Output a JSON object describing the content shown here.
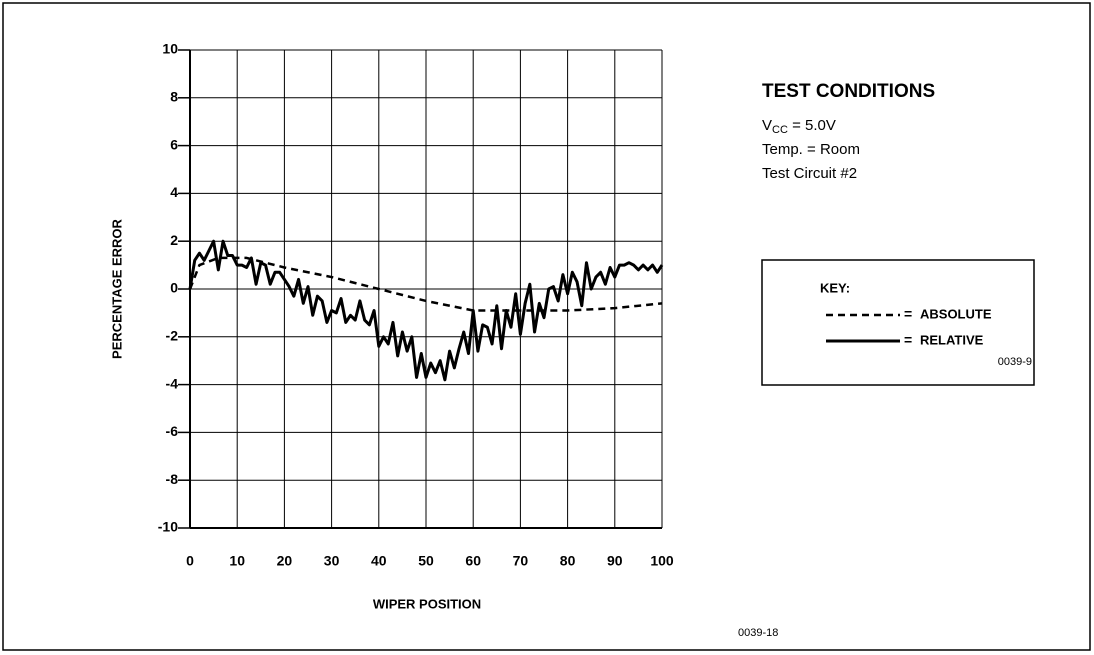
{
  "chart_data": {
    "type": "line",
    "xlabel": "WIPER POSITION",
    "ylabel": "PERCENTAGE ERROR",
    "xlim": [
      0,
      100
    ],
    "ylim": [
      -10,
      10
    ],
    "xticks": [
      0,
      10,
      20,
      30,
      40,
      50,
      60,
      70,
      80,
      90,
      100
    ],
    "yticks": [
      -10,
      -8,
      -6,
      -4,
      -2,
      0,
      2,
      4,
      6,
      8,
      10
    ],
    "grid": true,
    "legend_title": "KEY:",
    "legend_separator": "=",
    "legend_code": "0039-9",
    "figure_code": "0039-18",
    "conditions_title": "TEST CONDITIONS",
    "conditions": [
      {
        "main": "V",
        "sub": "CC",
        "rest": " = 5.0V"
      },
      {
        "main": "Temp. = Room"
      },
      {
        "main": "Test Circuit #2"
      }
    ],
    "series": [
      {
        "name": "ABSOLUTE",
        "color": "#000000",
        "style": "dashed",
        "x": [
          0,
          2,
          6,
          12,
          20,
          30,
          40,
          50,
          60,
          70,
          80,
          90,
          100
        ],
        "values": [
          0,
          1.0,
          1.3,
          1.3,
          0.9,
          0.5,
          0.0,
          -0.5,
          -0.9,
          -0.9,
          -0.9,
          -0.8,
          -0.6
        ]
      },
      {
        "name": "RELATIVE",
        "color": "#000000",
        "style": "solid",
        "x": [
          0,
          1,
          2,
          3,
          4,
          5,
          6,
          7,
          8,
          9,
          10,
          11,
          12,
          13,
          14,
          15,
          16,
          17,
          18,
          19,
          20,
          21,
          22,
          23,
          24,
          25,
          26,
          27,
          28,
          29,
          30,
          31,
          32,
          33,
          34,
          35,
          36,
          37,
          38,
          39,
          40,
          41,
          42,
          43,
          44,
          45,
          46,
          47,
          48,
          49,
          50,
          51,
          52,
          53,
          54,
          55,
          56,
          57,
          58,
          59,
          60,
          61,
          62,
          63,
          64,
          65,
          66,
          67,
          68,
          69,
          70,
          71,
          72,
          73,
          74,
          75,
          76,
          77,
          78,
          79,
          80,
          81,
          82,
          83,
          84,
          85,
          86,
          87,
          88,
          89,
          90,
          91,
          92,
          93,
          94,
          95,
          96,
          97,
          98,
          99,
          100
        ],
        "values": [
          0,
          1.2,
          1.5,
          1.2,
          1.6,
          2.0,
          0.8,
          2.0,
          1.4,
          1.4,
          1.0,
          1.0,
          0.9,
          1.3,
          0.2,
          1.1,
          1.0,
          0.2,
          0.7,
          0.7,
          0.4,
          0.1,
          -0.3,
          0.4,
          -0.6,
          0.1,
          -1.1,
          -0.3,
          -0.5,
          -1.4,
          -0.9,
          -1.0,
          -0.4,
          -1.4,
          -1.1,
          -1.3,
          -0.5,
          -1.3,
          -1.5,
          -0.9,
          -2.4,
          -2.0,
          -2.3,
          -1.4,
          -2.8,
          -1.8,
          -2.6,
          -2.0,
          -3.7,
          -2.7,
          -3.7,
          -3.1,
          -3.5,
          -3.0,
          -3.8,
          -2.6,
          -3.3,
          -2.5,
          -1.8,
          -2.7,
          -0.9,
          -2.6,
          -1.5,
          -1.6,
          -2.3,
          -0.7,
          -2.5,
          -0.9,
          -1.6,
          -0.2,
          -1.9,
          -0.6,
          0.2,
          -1.8,
          -0.6,
          -1.2,
          0.0,
          0.1,
          -0.5,
          0.6,
          -0.2,
          0.7,
          0.3,
          -0.7,
          1.1,
          0.0,
          0.5,
          0.7,
          0.2,
          0.9,
          0.5,
          1.0,
          1.0,
          1.1,
          1.0,
          0.8,
          1.0,
          0.8,
          1.0,
          0.7,
          1.0
        ]
      }
    ]
  }
}
